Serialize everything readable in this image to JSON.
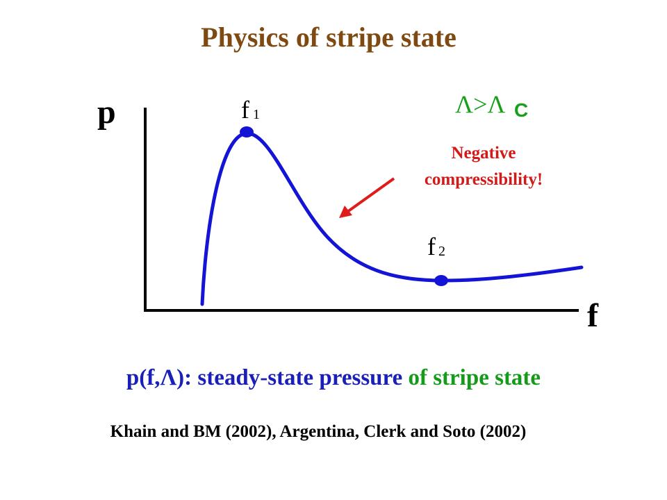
{
  "title": "Physics of stripe state",
  "diagram": {
    "y_axis_label": "p",
    "x_axis_label": "f",
    "point1_label": "f",
    "point1_sub": "1",
    "point2_label": "f",
    "point2_sub": "2",
    "condition_lambda": "Λ>Λ",
    "condition_sub": "C",
    "annotation_line1": "Negative",
    "annotation_line2": "compressibility!",
    "colors": {
      "curve": "#1414d6",
      "arrow": "#e01b1b",
      "axes": "#000000",
      "annotation": "#d11a1a",
      "condition": "#16a01a"
    }
  },
  "caption": {
    "part1": "p(f,Λ): steady-state pressure ",
    "part2": "of stripe state"
  },
  "citation": "Khain and BM (2002), Argentina, Clerk and Soto (2002)"
}
